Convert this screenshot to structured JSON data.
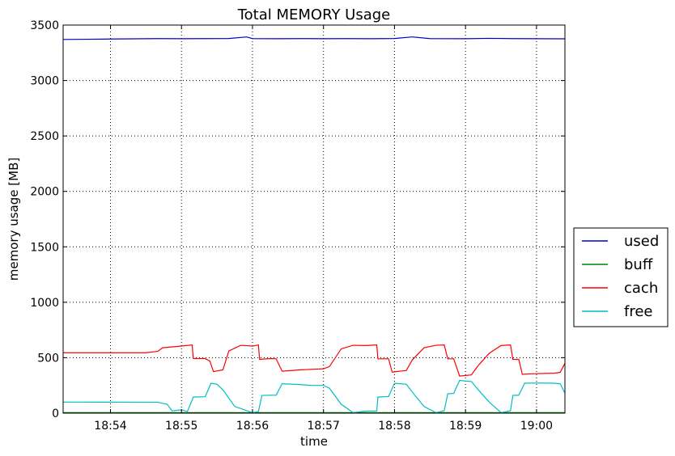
{
  "chart_data": {
    "type": "line",
    "title": "Total MEMORY Usage",
    "xlabel": "time",
    "ylabel": "memory usage [MB]",
    "x_unit": "clock time (HH:MM:SS)",
    "xlim": [
      "18:53:20",
      "19:00:24"
    ],
    "ylim": [
      0,
      3500
    ],
    "yticks": [
      0,
      500,
      1000,
      1500,
      2000,
      2500,
      3000,
      3500
    ],
    "xticks": [
      "18:54",
      "18:55",
      "18:56",
      "18:57",
      "18:58",
      "18:59",
      "19:00"
    ],
    "grid": true,
    "legend_position": "outside-right",
    "series": [
      {
        "name": "used",
        "color": "#0000cc",
        "points": [
          [
            "18:53:20",
            3370
          ],
          [
            "18:53:40",
            3372
          ],
          [
            "18:54:00",
            3374
          ],
          [
            "18:54:20",
            3376
          ],
          [
            "18:54:40",
            3378
          ],
          [
            "18:55:00",
            3377
          ],
          [
            "18:55:20",
            3378
          ],
          [
            "18:55:40",
            3379
          ],
          [
            "18:55:55",
            3393
          ],
          [
            "18:56:00",
            3378
          ],
          [
            "18:56:20",
            3377
          ],
          [
            "18:56:40",
            3378
          ],
          [
            "18:57:00",
            3377
          ],
          [
            "18:57:20",
            3378
          ],
          [
            "18:57:40",
            3377
          ],
          [
            "18:58:00",
            3379
          ],
          [
            "18:58:15",
            3393
          ],
          [
            "18:58:30",
            3378
          ],
          [
            "18:59:00",
            3377
          ],
          [
            "18:59:20",
            3380
          ],
          [
            "18:59:40",
            3378
          ],
          [
            "19:00:00",
            3377
          ],
          [
            "19:00:24",
            3376
          ]
        ]
      },
      {
        "name": "buff",
        "color": "#008000",
        "points": [
          [
            "18:53:20",
            5
          ],
          [
            "18:56:00",
            5
          ],
          [
            "18:58:00",
            5
          ],
          [
            "19:00:24",
            5
          ]
        ]
      },
      {
        "name": "cach",
        "color": "#ff0000",
        "points": [
          [
            "18:53:20",
            545
          ],
          [
            "18:54:30",
            545
          ],
          [
            "18:54:40",
            557
          ],
          [
            "18:54:44",
            590
          ],
          [
            "18:55:00",
            605
          ],
          [
            "18:55:09",
            615
          ],
          [
            "18:55:10",
            492
          ],
          [
            "18:55:20",
            492
          ],
          [
            "18:55:24",
            470
          ],
          [
            "18:55:27",
            375
          ],
          [
            "18:55:35",
            390
          ],
          [
            "18:55:40",
            560
          ],
          [
            "18:55:50",
            612
          ],
          [
            "18:56:00",
            605
          ],
          [
            "18:56:05",
            615
          ],
          [
            "18:56:06",
            485
          ],
          [
            "18:56:15",
            492
          ],
          [
            "18:56:20",
            490
          ],
          [
            "18:56:25",
            378
          ],
          [
            "18:56:40",
            390
          ],
          [
            "18:56:55",
            398
          ],
          [
            "18:57:00",
            400
          ],
          [
            "18:57:05",
            420
          ],
          [
            "18:57:15",
            580
          ],
          [
            "18:57:25",
            612
          ],
          [
            "18:57:35",
            610
          ],
          [
            "18:57:45",
            615
          ],
          [
            "18:57:46",
            490
          ],
          [
            "18:57:55",
            490
          ],
          [
            "18:57:58",
            370
          ],
          [
            "18:58:10",
            385
          ],
          [
            "18:58:15",
            480
          ],
          [
            "18:58:25",
            590
          ],
          [
            "18:58:35",
            612
          ],
          [
            "18:58:42",
            615
          ],
          [
            "18:58:45",
            490
          ],
          [
            "18:58:50",
            490
          ],
          [
            "18:58:55",
            335
          ],
          [
            "18:59:05",
            345
          ],
          [
            "18:59:10",
            420
          ],
          [
            "18:59:20",
            540
          ],
          [
            "18:59:30",
            610
          ],
          [
            "18:59:38",
            615
          ],
          [
            "18:59:40",
            485
          ],
          [
            "18:59:45",
            485
          ],
          [
            "18:59:48",
            350
          ],
          [
            "18:59:55",
            355
          ],
          [
            "19:00:15",
            360
          ],
          [
            "19:00:20",
            368
          ],
          [
            "19:00:24",
            450
          ]
        ]
      },
      {
        "name": "free",
        "color": "#00bfbf",
        "points": [
          [
            "18:53:20",
            100
          ],
          [
            "18:54:40",
            98
          ],
          [
            "18:54:48",
            80
          ],
          [
            "18:54:52",
            20
          ],
          [
            "18:55:00",
            30
          ],
          [
            "18:55:05",
            15
          ],
          [
            "18:55:10",
            145
          ],
          [
            "18:55:20",
            148
          ],
          [
            "18:55:25",
            270
          ],
          [
            "18:55:30",
            260
          ],
          [
            "18:55:35",
            210
          ],
          [
            "18:55:45",
            60
          ],
          [
            "18:56:00",
            5
          ],
          [
            "18:56:05",
            15
          ],
          [
            "18:56:08",
            160
          ],
          [
            "18:56:20",
            162
          ],
          [
            "18:56:25",
            265
          ],
          [
            "18:56:40",
            258
          ],
          [
            "18:56:50",
            250
          ],
          [
            "18:57:00",
            250
          ],
          [
            "18:57:05",
            225
          ],
          [
            "18:57:15",
            80
          ],
          [
            "18:57:25",
            5
          ],
          [
            "18:57:35",
            18
          ],
          [
            "18:57:45",
            20
          ],
          [
            "18:57:46",
            145
          ],
          [
            "18:57:55",
            150
          ],
          [
            "18:58:00",
            270
          ],
          [
            "18:58:10",
            260
          ],
          [
            "18:58:18",
            150
          ],
          [
            "18:58:25",
            60
          ],
          [
            "18:58:35",
            5
          ],
          [
            "18:58:42",
            22
          ],
          [
            "18:58:45",
            175
          ],
          [
            "18:58:50",
            178
          ],
          [
            "18:58:55",
            295
          ],
          [
            "18:59:05",
            285
          ],
          [
            "18:59:10",
            220
          ],
          [
            "18:59:20",
            100
          ],
          [
            "18:59:30",
            5
          ],
          [
            "18:59:38",
            22
          ],
          [
            "18:59:40",
            160
          ],
          [
            "18:59:45",
            162
          ],
          [
            "18:59:50",
            270
          ],
          [
            "19:00:00",
            272
          ],
          [
            "19:00:15",
            270
          ],
          [
            "19:00:20",
            265
          ],
          [
            "19:00:24",
            180
          ]
        ]
      }
    ]
  }
}
